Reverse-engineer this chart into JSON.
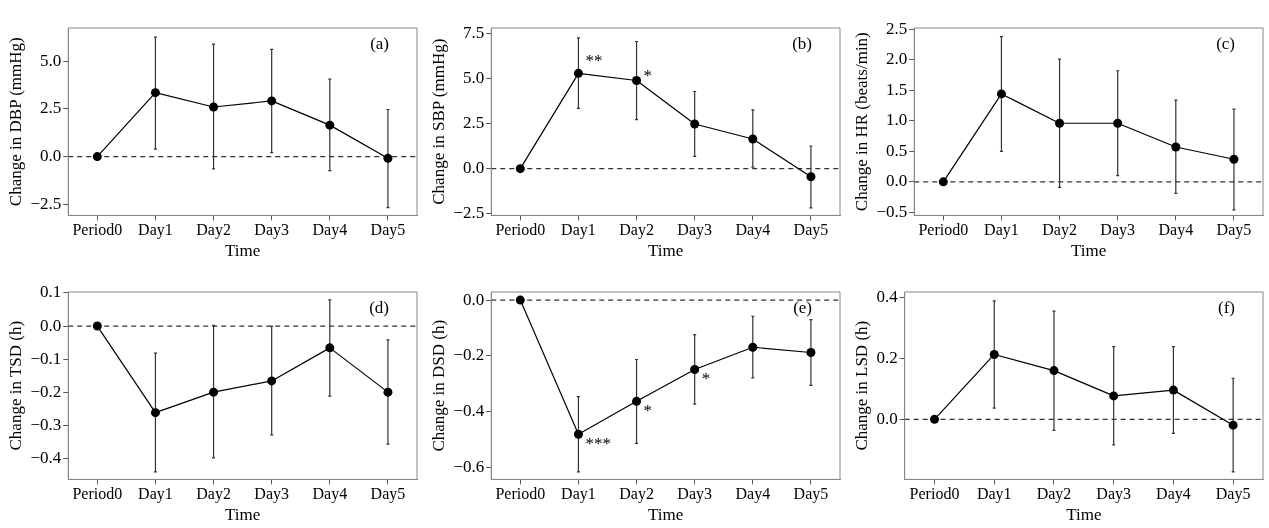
{
  "chart_data": [
    {
      "type": "line",
      "xlabel": "Time",
      "ylabel": "Change in DBP (mmHg)",
      "categories": [
        "Period0",
        "Day1",
        "Day2",
        "Day3",
        "Day4",
        "Day5"
      ],
      "series": [
        {
          "color": "#000000",
          "values": [
            0,
            3.35,
            2.6,
            2.92,
            1.65,
            -0.09
          ],
          "errors": [
            null,
            [
              0.39,
              6.26
            ],
            [
              -0.64,
              5.9
            ],
            [
              0.21,
              5.62
            ],
            [
              -0.73,
              4.06
            ],
            [
              -2.67,
              2.47
            ]
          ]
        }
      ],
      "ylim": [
        -3.08,
        6.74
      ],
      "yticks": [
        {
          "value": -2.5,
          "label": "−2.5"
        },
        {
          "value": 0,
          "label": "0.0"
        },
        {
          "value": 2.5,
          "label": "2.5"
        },
        {
          "value": 5,
          "label": "5.0"
        }
      ],
      "ref_lines": [
        {
          "axis": "y",
          "value": 0,
          "line_style": "dashed",
          "color": "#333333"
        }
      ],
      "annotations": [
        "(a)"
      ],
      "grid": false,
      "legend": false,
      "marker": "circle",
      "line_style": "solid"
    },
    {
      "type": "line",
      "xlabel": "Time",
      "ylabel": "Change in SBP (mmHg)",
      "categories": [
        "Period0",
        "Day1",
        "Day2",
        "Day3",
        "Day4",
        "Day5"
      ],
      "series": [
        {
          "color": "#000000",
          "values": [
            0,
            5.3,
            4.9,
            2.48,
            1.65,
            -0.45
          ],
          "errors": [
            null,
            [
              3.35,
              7.27
            ],
            [
              2.73,
              7.07
            ],
            [
              0.68,
              4.29
            ],
            [
              0.08,
              3.27
            ],
            [
              -2.18,
              1.26
            ]
          ]
        }
      ],
      "ylim": [
        -2.6,
        7.82
      ],
      "yticks": [
        {
          "value": -2.5,
          "label": "−2.5"
        },
        {
          "value": 0,
          "label": "0.0"
        },
        {
          "value": 2.5,
          "label": "2.5"
        },
        {
          "value": 5,
          "label": "5.0"
        },
        {
          "value": 7.5,
          "label": "7.5"
        }
      ],
      "ref_lines": [
        {
          "axis": "y",
          "value": 0,
          "line_style": "dashed",
          "color": "#333333"
        }
      ],
      "annotations": [
        "(b)",
        {
          "text": "**",
          "x": "Day1",
          "y": 5.3
        },
        {
          "text": "*",
          "x": "Day2",
          "y": 4.9
        }
      ],
      "grid": false,
      "legend": false,
      "marker": "circle",
      "line_style": "solid"
    },
    {
      "type": "line",
      "xlabel": "Time",
      "ylabel": "Change in HR (beats/min)",
      "categories": [
        "Period0",
        "Day1",
        "Day2",
        "Day3",
        "Day4",
        "Day5"
      ],
      "series": [
        {
          "color": "#000000",
          "values": [
            0,
            1.44,
            0.96,
            0.96,
            0.57,
            0.37
          ],
          "errors": [
            null,
            [
              0.5,
              2.38
            ],
            [
              -0.09,
              2.01
            ],
            [
              0.1,
              1.82
            ],
            [
              -0.19,
              1.34
            ],
            [
              -0.46,
              1.19
            ]
          ]
        }
      ],
      "ylim": [
        -0.55,
        2.52
      ],
      "yticks": [
        {
          "value": -0.5,
          "label": "−0.5"
        },
        {
          "value": 0,
          "label": "0.0"
        },
        {
          "value": 0.5,
          "label": "0.5"
        },
        {
          "value": 1,
          "label": "1.0"
        },
        {
          "value": 1.5,
          "label": "1.5"
        },
        {
          "value": 2,
          "label": "2.0"
        },
        {
          "value": 2.5,
          "label": "2.5"
        }
      ],
      "ref_lines": [
        {
          "axis": "y",
          "value": 0,
          "line_style": "dashed",
          "color": "#333333"
        }
      ],
      "annotations": [
        "(c)"
      ],
      "grid": false,
      "legend": false,
      "marker": "circle",
      "line_style": "solid"
    },
    {
      "type": "line",
      "xlabel": "Time",
      "ylabel": "Change in TSD (h)",
      "categories": [
        "Period0",
        "Day1",
        "Day2",
        "Day3",
        "Day4",
        "Day5"
      ],
      "series": [
        {
          "color": "#000000",
          "values": [
            0,
            -0.262,
            -0.2,
            -0.166,
            -0.066,
            -0.2
          ],
          "errors": [
            null,
            [
              -0.441,
              -0.082
            ],
            [
              -0.399,
              0.002
            ],
            [
              -0.329,
              -0.001
            ],
            [
              -0.212,
              0.079
            ],
            [
              -0.357,
              -0.042
            ]
          ]
        }
      ],
      "ylim": [
        -0.464,
        0.103
      ],
      "yticks": [
        {
          "value": -0.4,
          "label": "−0.4"
        },
        {
          "value": -0.3,
          "label": "−0.3"
        },
        {
          "value": -0.2,
          "label": "−0.2"
        },
        {
          "value": -0.1,
          "label": "−0.1"
        },
        {
          "value": 0,
          "label": "0.0"
        },
        0.1
      ],
      "ref_lines": [
        {
          "axis": "y",
          "value": 0,
          "line_style": "dashed",
          "color": "#333333"
        }
      ],
      "annotations": [
        "(d)"
      ],
      "grid": false,
      "legend": false,
      "marker": "circle",
      "line_style": "solid"
    },
    {
      "type": "line",
      "xlabel": "Time",
      "ylabel": "Change in DSD (h)",
      "categories": [
        "Period0",
        "Day1",
        "Day2",
        "Day3",
        "Day4",
        "Day5"
      ],
      "series": [
        {
          "color": "#000000",
          "values": [
            0,
            -0.481,
            -0.363,
            -0.249,
            -0.169,
            -0.188
          ],
          "errors": [
            null,
            [
              -0.616,
              -0.346
            ],
            [
              -0.514,
              -0.213
            ],
            [
              -0.373,
              -0.124
            ],
            [
              -0.279,
              -0.058
            ],
            [
              -0.306,
              -0.07
            ]
          ]
        }
      ],
      "ylim": [
        -0.643,
        0.029
      ],
      "yticks": [
        {
          "value": -0.6,
          "label": "−0.6"
        },
        {
          "value": -0.4,
          "label": "−0.4"
        },
        {
          "value": -0.2,
          "label": "−0.2"
        },
        {
          "value": 0,
          "label": "0.0"
        }
      ],
      "ref_lines": [
        {
          "axis": "y",
          "value": 0,
          "line_style": "dashed",
          "color": "#333333"
        }
      ],
      "annotations": [
        "(e)",
        {
          "text": "***",
          "x": "Day1",
          "y": -0.481
        },
        {
          "text": "*",
          "x": "Day2",
          "y": -0.363
        },
        {
          "text": "*",
          "x": "Day3",
          "y": -0.249
        }
      ],
      "grid": false,
      "legend": false,
      "marker": "circle",
      "line_style": "solid"
    },
    {
      "type": "line",
      "xlabel": "Time",
      "ylabel": "Change in LSD (h)",
      "categories": [
        "Period0",
        "Day1",
        "Day2",
        "Day3",
        "Day4",
        "Day5"
      ],
      "series": [
        {
          "color": "#000000",
          "values": [
            0,
            0.213,
            0.16,
            0.077,
            0.096,
            -0.019
          ],
          "errors": [
            null,
            [
              0.037,
              0.389
            ],
            [
              -0.036,
              0.355
            ],
            [
              -0.084,
              0.239
            ],
            [
              -0.046,
              0.239
            ],
            [
              -0.172,
              0.135
            ]
          ]
        }
      ],
      "ylim": [
        -0.197,
        0.418
      ],
      "yticks": [
        {
          "value": 0,
          "label": "0.0"
        },
        {
          "value": 0.2,
          "label": "0.2"
        },
        {
          "value": 0.4,
          "label": "0.4"
        }
      ],
      "ref_lines": [
        {
          "axis": "y",
          "value": 0,
          "line_style": "dashed",
          "color": "#333333"
        }
      ],
      "annotations": [
        "(f)"
      ],
      "grid": false,
      "legend": false,
      "marker": "circle",
      "line_style": "solid"
    }
  ]
}
